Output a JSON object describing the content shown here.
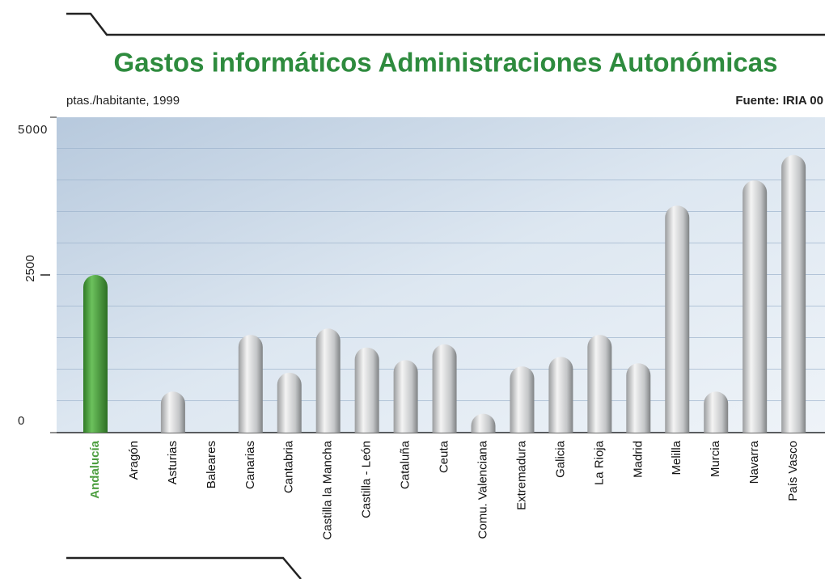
{
  "chart_data": {
    "type": "bar",
    "title": "Gastos informáticos Administraciones Autonómicas",
    "subtitle": "ptas./habitante, 1999",
    "source": "Fuente: IRIA 00",
    "categories": [
      "Andalucía",
      "Aragón",
      "Asturias",
      "Baleares",
      "Canarias",
      "Cantabria",
      "Castilla la Mancha",
      "Castilla - León",
      "Cataluña",
      "Ceuta",
      "Comu. Valenciana",
      "Extremadura",
      "Galicia",
      "La Rioja",
      "Madrid",
      "Melilla",
      "Murcia",
      "Navarra",
      "País Vasco"
    ],
    "values": [
      2500,
      null,
      650,
      null,
      1550,
      950,
      1650,
      1350,
      1150,
      1400,
      300,
      1050,
      1200,
      1550,
      1100,
      3600,
      650,
      4000,
      4400
    ],
    "color": "#c8cacc",
    "highlight_index": 0,
    "highlight_color": "#4c9e3f",
    "ylim": [
      0,
      5000
    ],
    "yticks": [
      0,
      2500,
      5000
    ]
  }
}
